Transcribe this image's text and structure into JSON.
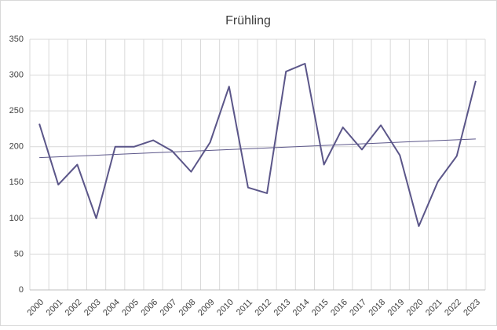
{
  "chart_data": {
    "type": "line",
    "title": "Frühling",
    "categories": [
      "2000",
      "2001",
      "2002",
      "2003",
      "2004",
      "2005",
      "2006",
      "2007",
      "2008",
      "2009",
      "2010",
      "2011",
      "2012",
      "2013",
      "2014",
      "2015",
      "2016",
      "2017",
      "2018",
      "2019",
      "2020",
      "2021",
      "2022",
      "2023"
    ],
    "values": [
      232,
      147,
      175,
      100,
      200,
      200,
      209,
      194,
      165,
      206,
      284,
      143,
      135,
      305,
      316,
      175,
      227,
      196,
      230,
      188,
      89,
      151,
      187,
      292
    ],
    "color": "#5b5689",
    "ylim": [
      0,
      350
    ],
    "yticks": [
      0,
      50,
      100,
      150,
      200,
      250,
      300,
      350
    ],
    "grid": true,
    "trendline": true
  }
}
